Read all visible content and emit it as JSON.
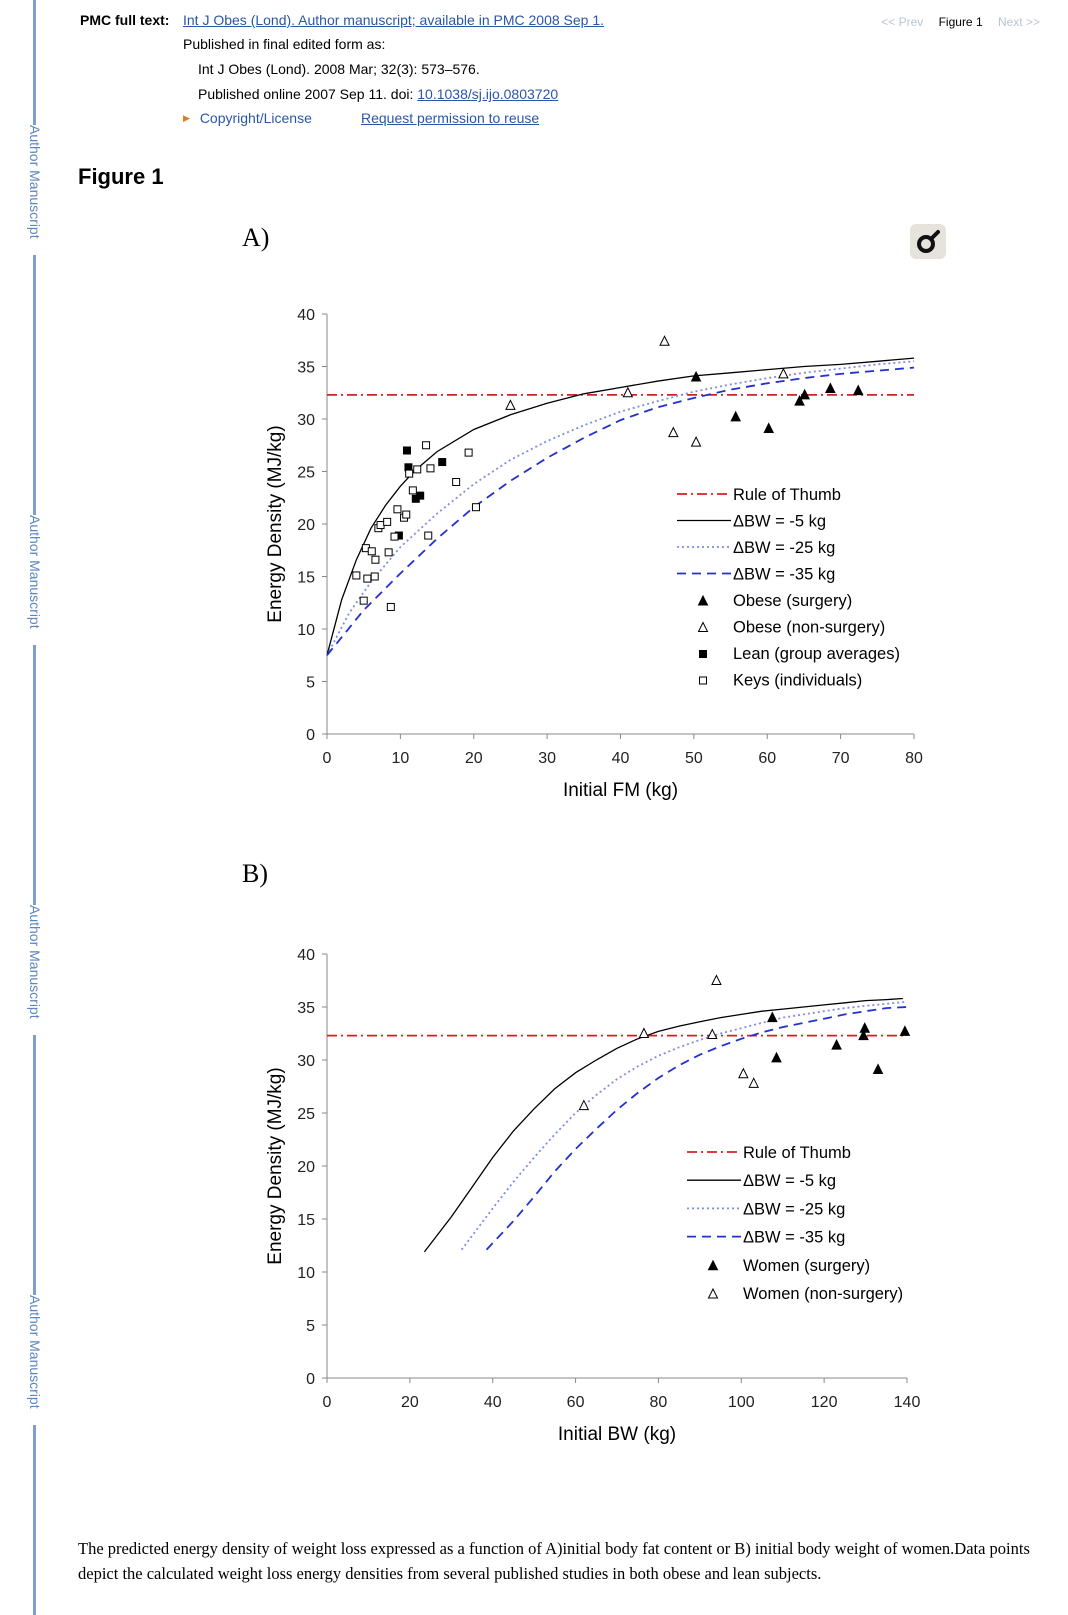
{
  "sidebar": {
    "label": "Author Manuscript"
  },
  "header": {
    "pmc_label": "PMC full text:",
    "source_link": "Int J Obes (Lond). Author manuscript; available in PMC 2008 Sep 1.",
    "published_as": "Published in final edited form as:",
    "citation": "Int J Obes (Lond). 2008 Mar; 32(3): 573–576.",
    "published_online": "Published online 2007 Sep 11. doi: ",
    "doi": "10.1038/sj.ijo.0803720",
    "copyright": "Copyright/License",
    "permission": "Request permission to reuse"
  },
  "nav": {
    "prev": "<< Prev",
    "current": "Figure 1",
    "next": "Next >>"
  },
  "figure": {
    "title": "Figure 1"
  },
  "caption": "The predicted energy density of weight loss expressed as a function of A)initial body fat content or B) initial body weight of women.Data points depict the calculated weight loss energy densities from several published studies in both obese and lean subjects.",
  "colors": {
    "rule": "#d62020",
    "dbw5": "#000000",
    "dbw25": "#7f8be8",
    "dbw35": "#2330d0",
    "sidebar": "#7d9fc9",
    "link": "#2a56a8"
  },
  "chart_data": [
    {
      "type": "scatter",
      "panel_label": "A)",
      "xlabel": "Initial FM (kg)",
      "ylabel": "Energy Density (MJ/kg)",
      "xlim": [
        0,
        80
      ],
      "ylim": [
        0,
        40
      ],
      "xticks": [
        0,
        10,
        20,
        30,
        40,
        50,
        60,
        70,
        80
      ],
      "yticks": [
        0,
        5,
        10,
        15,
        20,
        25,
        30,
        35,
        40
      ],
      "legend_position": "right",
      "lines": [
        {
          "name": "Rule of Thumb",
          "style": "dashdot",
          "color": "#d62020",
          "x": [
            0,
            80
          ],
          "y": [
            32.3,
            32.3
          ]
        },
        {
          "name": "ΔBW = -5 kg",
          "style": "solid",
          "color": "#000000",
          "x": [
            0,
            2,
            4,
            6,
            8,
            10,
            12,
            15,
            20,
            25,
            30,
            35,
            40,
            45,
            50,
            55,
            60,
            65,
            70,
            75,
            80
          ],
          "y": [
            7.5,
            12.8,
            16.6,
            19.6,
            21.8,
            23.6,
            25.1,
            26.9,
            29,
            30.4,
            31.5,
            32.4,
            33,
            33.6,
            34.1,
            34.4,
            34.7,
            35,
            35.2,
            35.5,
            35.8
          ]
        },
        {
          "name": "ΔBW = -25 kg",
          "style": "dotted",
          "color": "#7f8be8",
          "x": [
            0,
            3,
            6,
            10,
            15,
            20,
            25,
            30,
            35,
            40,
            45,
            50,
            55,
            60,
            65,
            70,
            75,
            80
          ],
          "y": [
            7.5,
            11.5,
            14.5,
            17.8,
            21,
            23.8,
            26.1,
            27.9,
            29.4,
            30.7,
            31.7,
            32.6,
            33.3,
            33.9,
            34.4,
            34.8,
            35.2,
            35.5
          ]
        },
        {
          "name": "ΔBW = -35 kg",
          "style": "dashed",
          "color": "#2330d0",
          "x": [
            0,
            5,
            10,
            15,
            20,
            25,
            30,
            35,
            40,
            45,
            50,
            55,
            60,
            65,
            70,
            75,
            80
          ],
          "y": [
            7.5,
            11.8,
            15.3,
            18.6,
            21.6,
            24.1,
            26.3,
            28.2,
            29.9,
            31.1,
            32,
            32.8,
            33.4,
            33.9,
            34.3,
            34.6,
            34.9
          ]
        }
      ],
      "points": [
        {
          "name": "Obese (surgery)",
          "marker": "triangle-filled",
          "x": [
            50.3,
            55.7,
            60.2,
            64.4,
            65.1,
            68.6,
            72.4
          ],
          "y": [
            34,
            30.2,
            29.1,
            31.7,
            32.3,
            32.9,
            32.7
          ]
        },
        {
          "name": "Obese (non-surgery)",
          "marker": "triangle-open",
          "x": [
            25,
            41,
            46,
            47.2,
            50.3,
            62.2
          ],
          "y": [
            31.3,
            32.5,
            37.4,
            28.7,
            27.8,
            34.3
          ]
        },
        {
          "name": "Lean (group averages)",
          "marker": "square-filled",
          "x": [
            9.8,
            10.9,
            11.1,
            12.1,
            12.7,
            15.7
          ],
          "y": [
            18.9,
            27,
            25.4,
            22.4,
            22.7,
            25.9
          ]
        },
        {
          "name": "Keys (individuals)",
          "marker": "square-open",
          "x": [
            4,
            5,
            5.3,
            5.5,
            6.1,
            6.5,
            6.6,
            7,
            7.3,
            8.2,
            8.4,
            8.7,
            9.2,
            9.6,
            10.5,
            10.8,
            11.2,
            11.7,
            12.3,
            13.5,
            13.8,
            14.1,
            17.6,
            19.3,
            20.3
          ],
          "y": [
            15.1,
            12.7,
            17.7,
            14.8,
            17.4,
            15,
            16.6,
            19.6,
            19.9,
            20.2,
            17.3,
            12.1,
            18.8,
            21.4,
            20.6,
            20.9,
            24.8,
            23.2,
            25.2,
            27.5,
            18.9,
            25.3,
            24,
            26.8,
            21.6
          ]
        }
      ]
    },
    {
      "type": "scatter",
      "panel_label": "B)",
      "xlabel": "Initial BW (kg)",
      "ylabel": "Energy Density (MJ/kg)",
      "xlim": [
        0,
        140
      ],
      "ylim": [
        0,
        40
      ],
      "xticks": [
        0,
        20,
        40,
        60,
        80,
        100,
        120,
        140
      ],
      "yticks": [
        0,
        5,
        10,
        15,
        20,
        25,
        30,
        35,
        40
      ],
      "legend_position": "right",
      "lines": [
        {
          "name": "Rule of Thumb",
          "style": "dashdot",
          "color": "#d62020",
          "x": [
            0,
            140
          ],
          "y": [
            32.3,
            32.3
          ]
        },
        {
          "name": "ΔBW = -5 kg",
          "style": "solid",
          "color": "#000000",
          "x": [
            23.5,
            30,
            35,
            40,
            45,
            50,
            55,
            60,
            65,
            70,
            75,
            80,
            85,
            90,
            95,
            100,
            105,
            110,
            115,
            120,
            125,
            130,
            135,
            139
          ],
          "y": [
            11.9,
            15.2,
            18,
            20.8,
            23.3,
            25.4,
            27.3,
            28.8,
            30,
            31.1,
            32,
            32.7,
            33.2,
            33.6,
            34,
            34.3,
            34.6,
            34.8,
            35,
            35.2,
            35.4,
            35.6,
            35.7,
            35.8
          ]
        },
        {
          "name": "ΔBW = -25 kg",
          "style": "dotted",
          "color": "#7f8be8",
          "x": [
            32.5,
            40,
            45,
            50,
            55,
            60,
            65,
            70,
            75,
            80,
            85,
            90,
            95,
            100,
            105,
            110,
            115,
            120,
            125,
            130,
            135,
            140
          ],
          "y": [
            12.1,
            16,
            18.5,
            20.8,
            23,
            25,
            26.7,
            28.2,
            29.4,
            30.4,
            31.2,
            31.9,
            32.5,
            33,
            33.5,
            34,
            34.3,
            34.6,
            34.9,
            35.1,
            35.3,
            35.5
          ]
        },
        {
          "name": "ΔBW = -35 kg",
          "style": "dashed",
          "color": "#2330d0",
          "x": [
            38.5,
            45,
            50,
            55,
            60,
            65,
            70,
            75,
            80,
            85,
            90,
            95,
            100,
            105,
            110,
            115,
            120,
            125,
            130,
            135,
            140
          ],
          "y": [
            12.1,
            14.8,
            17.1,
            19.5,
            21.6,
            23.5,
            25.3,
            26.9,
            28.3,
            29.5,
            30.5,
            31.3,
            32,
            32.6,
            33.1,
            33.5,
            33.9,
            34.3,
            34.6,
            34.9,
            35
          ]
        },
        {
          "name": "",
          "style": "solid",
          "color": "#000000",
          "x": [],
          "y": []
        }
      ],
      "points": [
        {
          "name": "Women (surgery)",
          "marker": "triangle-filled",
          "x": [
            107.5,
            108.5,
            123,
            129.5,
            129.8,
            133,
            139.5
          ],
          "y": [
            34,
            30.2,
            31.4,
            32.3,
            33,
            29.1,
            32.7
          ]
        },
        {
          "name": "Women (non-surgery)",
          "marker": "triangle-open",
          "x": [
            62,
            76.5,
            93,
            94,
            100.5,
            103
          ],
          "y": [
            25.7,
            32.5,
            32.4,
            37.5,
            28.7,
            27.8
          ]
        }
      ]
    }
  ]
}
